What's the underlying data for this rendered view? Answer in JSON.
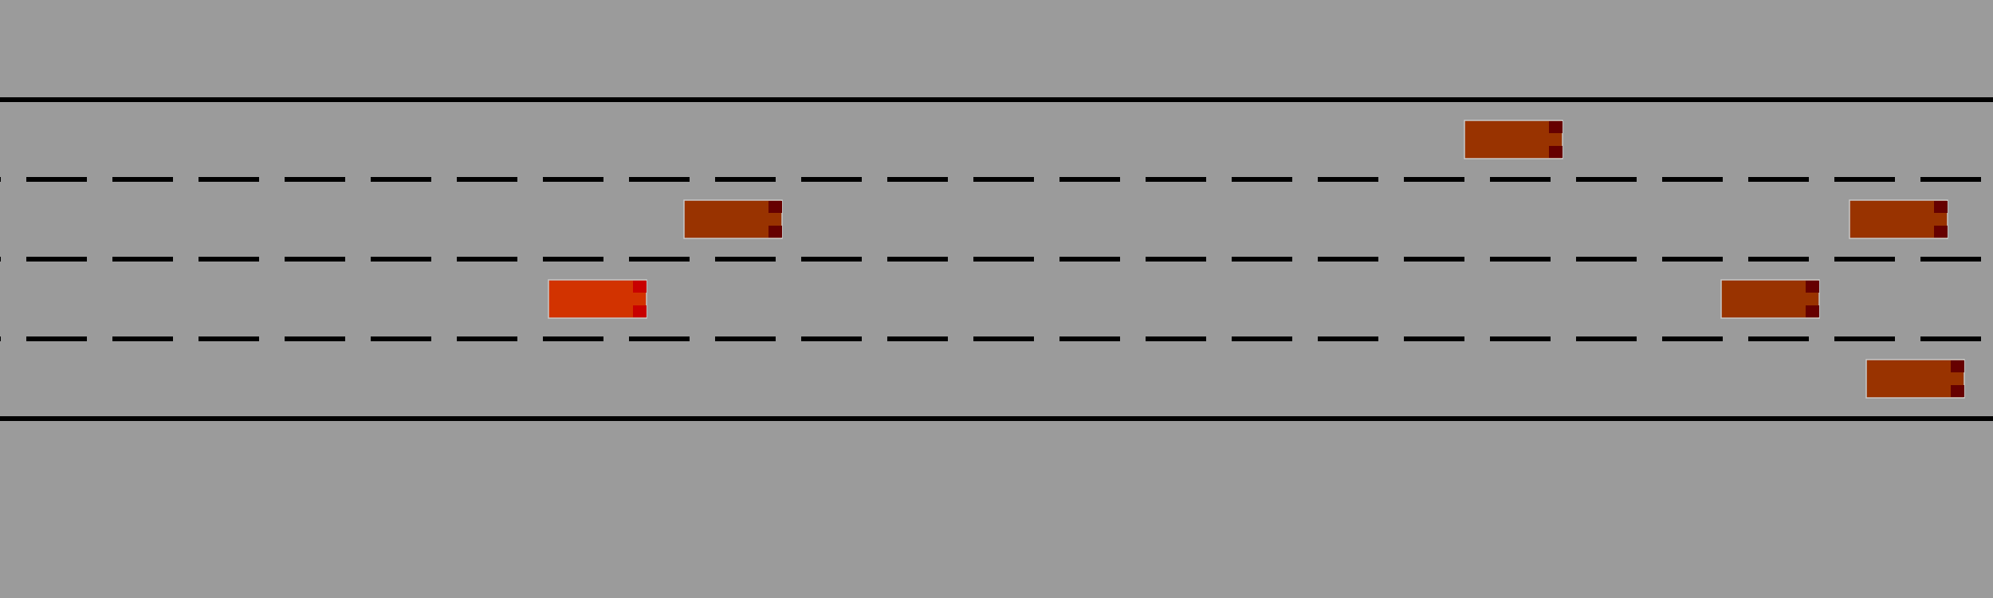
{
  "scene": {
    "background_color": "#9b9b9b",
    "boundary_line_color": "#000000",
    "lane_marking_color": "#000000",
    "lane_count": 4,
    "lane_line_style": "dashed"
  },
  "vehicles": [
    {
      "name": "ego-vehicle",
      "role": "ego",
      "lane": 3,
      "heading": "right",
      "color": "#d23300",
      "light_color": "#c80000"
    },
    {
      "name": "other-vehicle-1",
      "role": "other",
      "lane": 1,
      "heading": "right",
      "color": "#993300",
      "light_color": "#660000"
    },
    {
      "name": "other-vehicle-2",
      "role": "other",
      "lane": 2,
      "heading": "right",
      "color": "#993300",
      "light_color": "#660000"
    },
    {
      "name": "other-vehicle-3",
      "role": "other",
      "lane": 2,
      "heading": "right",
      "color": "#993300",
      "light_color": "#660000"
    },
    {
      "name": "other-vehicle-4",
      "role": "other",
      "lane": 3,
      "heading": "right",
      "color": "#993300",
      "light_color": "#660000"
    },
    {
      "name": "other-vehicle-5",
      "role": "other",
      "lane": 4,
      "heading": "right",
      "color": "#993300",
      "light_color": "#660000"
    }
  ]
}
